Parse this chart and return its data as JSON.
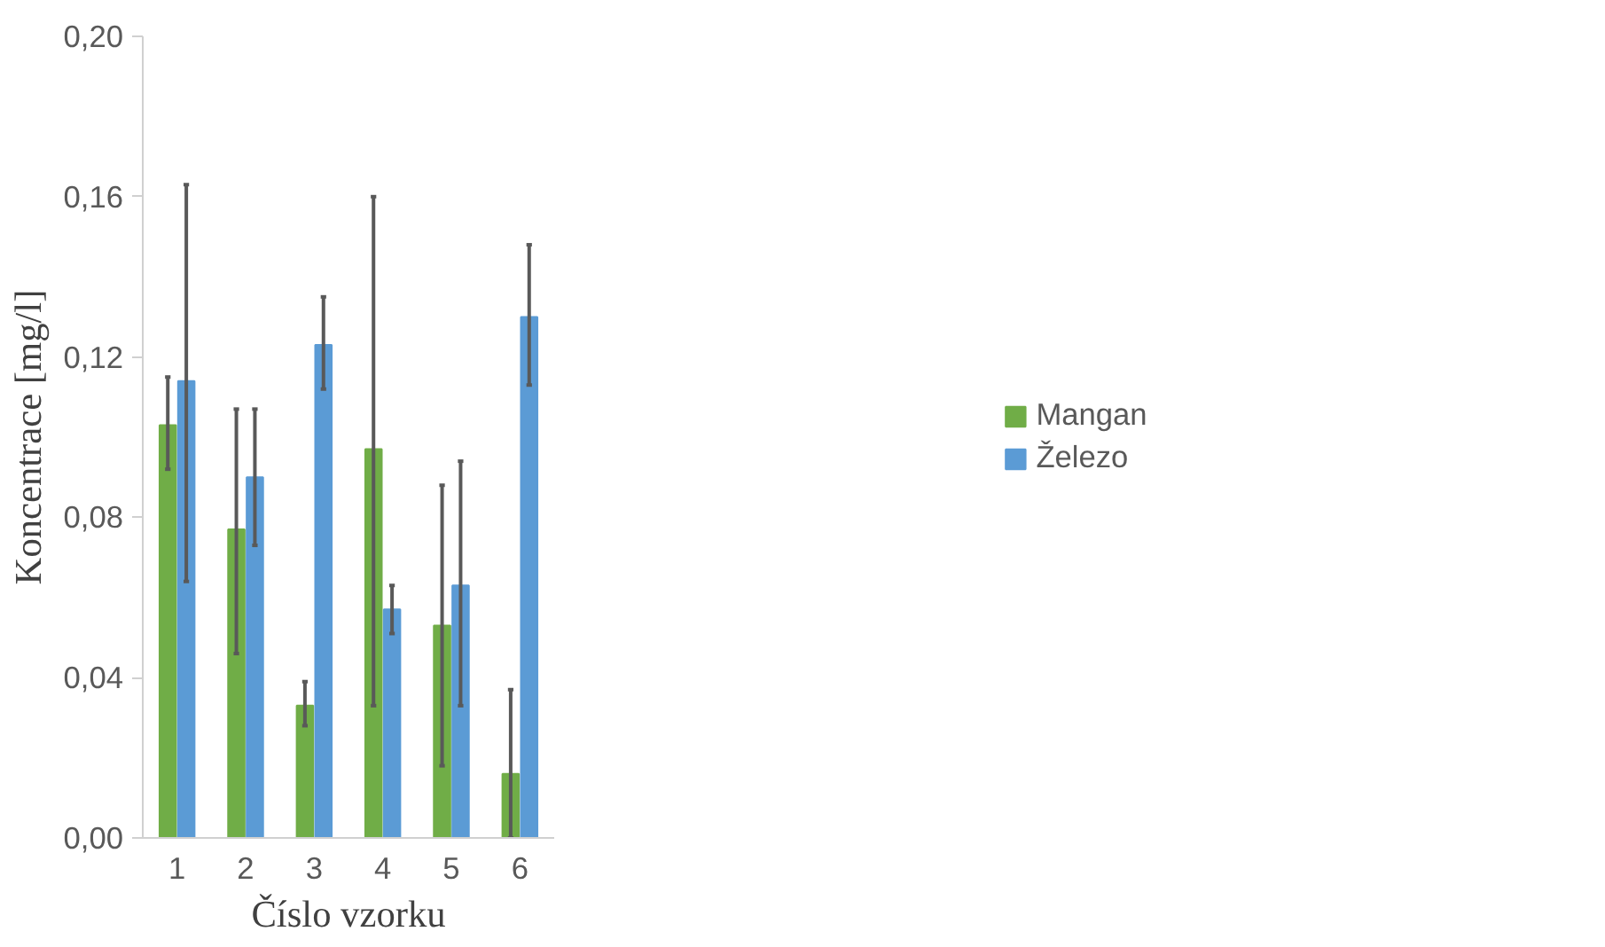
{
  "chart_data": {
    "type": "bar",
    "xlabel": "Číslo vzorku",
    "ylabel": "Koncentrace [mg/l]",
    "categories": [
      "1",
      "2",
      "3",
      "4",
      "5",
      "6"
    ],
    "series": [
      {
        "name": "Mangan",
        "color": "#70ad47",
        "values": [
          0.103,
          0.077,
          0.033,
          0.097,
          0.053,
          0.016
        ],
        "errors": [
          [
            0.092,
            0.115
          ],
          [
            0.046,
            0.107
          ],
          [
            0.028,
            0.039
          ],
          [
            0.033,
            0.16
          ],
          [
            0.018,
            0.088
          ],
          [
            0.0,
            0.037
          ]
        ]
      },
      {
        "name": "Železo",
        "color": "#5b9bd5",
        "values": [
          0.114,
          0.09,
          0.123,
          0.057,
          0.063,
          0.13
        ],
        "errors": [
          [
            0.064,
            0.163
          ],
          [
            0.073,
            0.107
          ],
          [
            0.112,
            0.135
          ],
          [
            0.051,
            0.063
          ],
          [
            0.033,
            0.094
          ],
          [
            0.113,
            0.148
          ]
        ]
      }
    ],
    "ylim": [
      0,
      0.2
    ],
    "yticks": [
      {
        "value": 0,
        "label": "0,00"
      },
      {
        "value": 0.04,
        "label": "0,04"
      },
      {
        "value": 0.08,
        "label": "0,08"
      },
      {
        "value": 0.12,
        "label": "0,12"
      },
      {
        "value": 0.16,
        "label": "0,16"
      },
      {
        "value": 0.2,
        "label": "0,20"
      }
    ],
    "grid": false,
    "legend": "right"
  }
}
